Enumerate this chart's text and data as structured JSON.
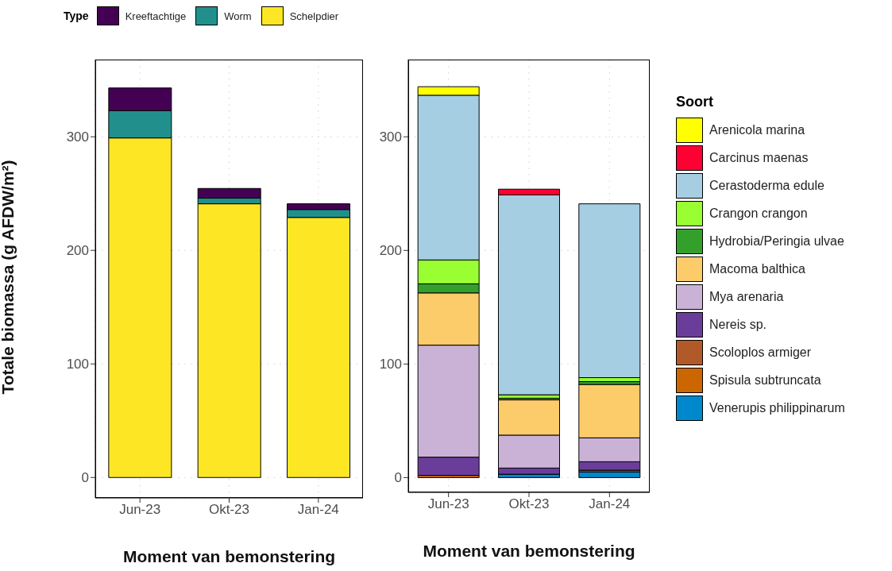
{
  "chart_data": [
    {
      "type": "bar",
      "stacked": true,
      "ylabel": "Totale biomassa (g AFDW/m²)",
      "xlabel": "Moment van bemonstering",
      "legend_title": "Type",
      "legend": "top",
      "grid": true,
      "categories": [
        "Jun-23",
        "Okt-23",
        "Jan-24"
      ],
      "ylim": [
        -18,
        368
      ],
      "yticks": [
        0,
        100,
        200,
        300
      ],
      "series": [
        {
          "name": "Schelpdier",
          "color": "#fde725",
          "values": [
            299,
            241,
            229
          ]
        },
        {
          "name": "Worm",
          "color": "#21908c",
          "values": [
            24,
            5,
            7
          ]
        },
        {
          "name": "Kreeftachtige",
          "color": "#440154",
          "values": [
            20,
            8.5,
            5
          ]
        }
      ]
    },
    {
      "type": "bar",
      "stacked": true,
      "xlabel": "Moment van bemonstering",
      "legend_title": "Soort",
      "legend": "right",
      "grid": true,
      "categories": [
        "Jun-23",
        "Okt-23",
        "Jan-24"
      ],
      "ylim": [
        -13,
        368
      ],
      "yticks": [
        0,
        100,
        200,
        300
      ],
      "series": [
        {
          "name": "Venerupis philippinarum",
          "color": "#0088cc",
          "values": [
            0,
            3,
            5
          ]
        },
        {
          "name": "Spisula subtruncata",
          "color": "#cc6600",
          "values": [
            2,
            0,
            0
          ]
        },
        {
          "name": "Scoloplos armiger",
          "color": "#b15928",
          "values": [
            0,
            0,
            1.5
          ]
        },
        {
          "name": "Nereis sp.",
          "color": "#6a3d9a",
          "values": [
            16,
            5.4,
            7.5
          ]
        },
        {
          "name": "Mya arenaria",
          "color": "#cab2d6",
          "values": [
            98.6,
            29,
            21
          ]
        },
        {
          "name": "Macoma balthica",
          "color": "#fdcc6a",
          "values": [
            46,
            31,
            47
          ]
        },
        {
          "name": "Hydrobia/Peringia ulvae",
          "color": "#33a02c",
          "values": [
            8,
            1.5,
            2.5
          ]
        },
        {
          "name": "Crangon crangon",
          "color": "#99ff33",
          "values": [
            21,
            3,
            3.5
          ]
        },
        {
          "name": "Cerastoderma edule",
          "color": "#a6cee3",
          "values": [
            145,
            176,
            153
          ]
        },
        {
          "name": "Carcinus maenas",
          "color": "#ff0033",
          "values": [
            0,
            5,
            0
          ]
        },
        {
          "name": "Arenicola marina",
          "color": "#ffff00",
          "values": [
            7.5,
            0,
            0
          ]
        }
      ]
    }
  ]
}
